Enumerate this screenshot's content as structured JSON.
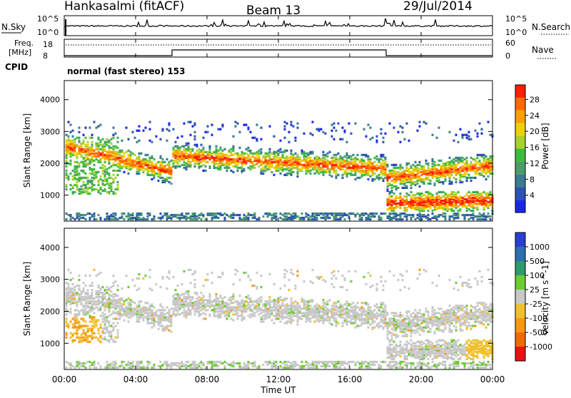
{
  "header": {
    "station": "Hankasalmi (fitACF)",
    "beam": "Beam 13",
    "date": "29/Jul/2014"
  },
  "top_panel": {
    "left_label": "N.Sky",
    "left_ticks": [
      "10^5",
      "10^0"
    ],
    "right_ticks": [
      "10^5",
      "10^0"
    ],
    "right_label": "N.Search"
  },
  "freq_panel": {
    "label_line1": "Freq.",
    "label_line2": "[MHz]",
    "left_ticks": [
      "18",
      "8"
    ],
    "right_ticks": [
      "60",
      "0"
    ],
    "right_label": "Nave"
  },
  "cpid": {
    "label": "CPID",
    "mode": "normal (fast stereo) 153"
  },
  "chart_data": [
    {
      "type": "heatmap",
      "ylabel": "Slant Range [km]",
      "yticks": [
        1000,
        2000,
        3000,
        4000
      ],
      "ylim": [
        180,
        4600
      ],
      "xlabel": "Time UT",
      "xticks": [
        "00:00",
        "04:00",
        "08:00",
        "12:00",
        "16:00",
        "20:00",
        "00:00"
      ],
      "colorbar": {
        "label": "Power [dB]",
        "ticks": [
          4,
          8,
          12,
          16,
          20,
          24,
          28
        ],
        "colors": [
          "#1b27e8",
          "#2c52b3",
          "#3a7b8f",
          "#4a9d6b",
          "#3dbb3d",
          "#a8d030",
          "#f0d000",
          "#f7a000",
          "#ff6a00",
          "#ff1e00"
        ]
      },
      "bands": [
        {
          "name": "upper band",
          "x": [
            0.0,
            6.0,
            6.0,
            18.0,
            18.0,
            24.0
          ],
          "y": [
            2500,
            1700,
            2200,
            1800,
            1500,
            1900
          ]
        },
        {
          "name": "lower band",
          "x": [
            18.0,
            24.0
          ],
          "y": [
            700,
            800
          ]
        }
      ]
    },
    {
      "type": "heatmap",
      "ylabel": "Slant Range [km]",
      "yticks": [
        1000,
        2000,
        3000,
        4000
      ],
      "ylim": [
        180,
        4600
      ],
      "xlabel": "Time UT",
      "xticks": [
        "00:00",
        "04:00",
        "08:00",
        "12:00",
        "16:00",
        "20:00",
        "00:00"
      ],
      "colorbar": {
        "label": "Velocity [m s^-1]",
        "ticks": [
          1000,
          500,
          100,
          25,
          -25,
          -100,
          -500,
          -1000
        ],
        "colors": [
          "#2a3fd0",
          "#2c6eb0",
          "#2f9a6a",
          "#6ccc33",
          "#c8c8c8",
          "#f0c030",
          "#f59a10",
          "#f06a00",
          "#ee1010"
        ]
      }
    }
  ]
}
